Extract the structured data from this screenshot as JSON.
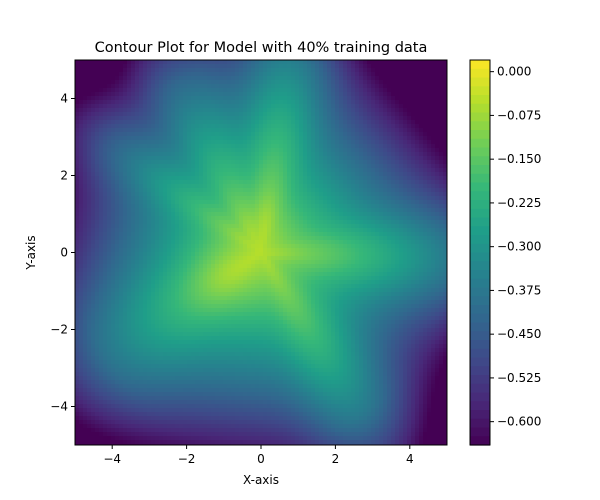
{
  "chart_data": {
    "type": "contour",
    "title": "Contour Plot for Model with 40% training data",
    "xlabel": "X-axis",
    "ylabel": "Y-axis",
    "xlim": [
      -5,
      5
    ],
    "ylim": [
      -5,
      5
    ],
    "x_ticks": [
      -4,
      -2,
      0,
      2,
      4
    ],
    "y_ticks": [
      -4,
      -2,
      0,
      2,
      4
    ],
    "x_tick_labels": [
      "−4",
      "−2",
      "0",
      "2",
      "4"
    ],
    "y_tick_labels": [
      "−4",
      "−2",
      "0",
      "2",
      "4"
    ],
    "colormap": "viridis",
    "colorbar": {
      "range": [
        -0.64,
        0.02
      ],
      "ticks": [
        0.0,
        -0.075,
        -0.15,
        -0.225,
        -0.3,
        -0.375,
        -0.45,
        -0.525,
        -0.6
      ],
      "tick_labels": [
        "0.000",
        "−0.075",
        "−0.150",
        "−0.225",
        "−0.300",
        "−0.375",
        "−0.450",
        "−0.525",
        "−0.600"
      ]
    },
    "grid": false
  }
}
